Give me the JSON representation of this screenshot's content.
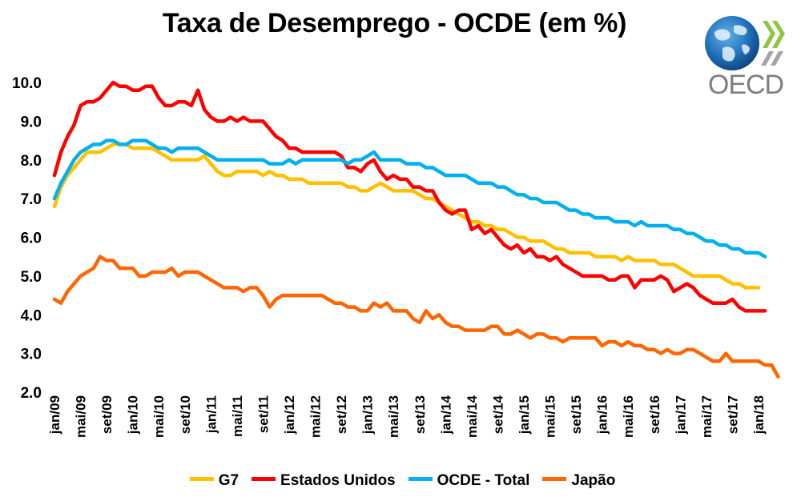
{
  "chart_data": {
    "type": "line",
    "title": "Taxa de Desemprego - OCDE (em %)",
    "xlabel": "",
    "ylabel": "",
    "ylim": [
      2.0,
      10.0
    ],
    "yticks": [
      "2.0",
      "3.0",
      "4.0",
      "5.0",
      "6.0",
      "7.0",
      "8.0",
      "9.0",
      "10.0"
    ],
    "xticks": [
      "jan/09",
      "mai/09",
      "set/09",
      "jan/10",
      "mai/10",
      "set/10",
      "jan/11",
      "mai/11",
      "set/11",
      "jan/12",
      "mai/12",
      "set/12",
      "jan/13",
      "mai/13",
      "set/13",
      "jan/14",
      "mai/14",
      "set/14",
      "jan/15",
      "mai/15",
      "set/15",
      "jan/16",
      "mai/16",
      "set/16",
      "jan/17",
      "mai/17",
      "set/17",
      "jan/18"
    ],
    "grid": false,
    "legend_position": "bottom",
    "series": [
      {
        "name": "G7",
        "color": "#FFC000",
        "values": [
          6.8,
          7.3,
          7.6,
          7.8,
          8.0,
          8.2,
          8.2,
          8.2,
          8.3,
          8.4,
          8.4,
          8.4,
          8.3,
          8.3,
          8.3,
          8.3,
          8.2,
          8.1,
          8.0,
          8.0,
          8.0,
          8.0,
          8.0,
          8.1,
          7.9,
          7.7,
          7.6,
          7.6,
          7.7,
          7.7,
          7.7,
          7.7,
          7.6,
          7.7,
          7.6,
          7.6,
          7.5,
          7.5,
          7.5,
          7.4,
          7.4,
          7.4,
          7.4,
          7.4,
          7.4,
          7.3,
          7.3,
          7.2,
          7.2,
          7.3,
          7.4,
          7.3,
          7.2,
          7.2,
          7.2,
          7.2,
          7.1,
          7.0,
          7.0,
          6.9,
          6.8,
          6.7,
          6.6,
          6.5,
          6.4,
          6.4,
          6.3,
          6.3,
          6.2,
          6.2,
          6.1,
          6.0,
          6.0,
          5.9,
          5.9,
          5.9,
          5.8,
          5.7,
          5.7,
          5.6,
          5.6,
          5.6,
          5.6,
          5.5,
          5.5,
          5.5,
          5.5,
          5.4,
          5.5,
          5.4,
          5.4,
          5.4,
          5.4,
          5.3,
          5.3,
          5.3,
          5.2,
          5.1,
          5.0,
          5.0,
          5.0,
          5.0,
          5.0,
          4.9,
          4.8,
          4.8,
          4.7,
          4.7,
          4.7
        ]
      },
      {
        "name": "Estados Unidos",
        "color": "#FF0000",
        "values": [
          7.6,
          8.2,
          8.6,
          8.9,
          9.4,
          9.5,
          9.5,
          9.6,
          9.8,
          10.0,
          9.9,
          9.9,
          9.8,
          9.8,
          9.9,
          9.9,
          9.6,
          9.4,
          9.4,
          9.5,
          9.5,
          9.4,
          9.8,
          9.3,
          9.1,
          9.0,
          9.0,
          9.1,
          9.0,
          9.1,
          9.0,
          9.0,
          9.0,
          8.8,
          8.6,
          8.5,
          8.3,
          8.3,
          8.2,
          8.2,
          8.2,
          8.2,
          8.2,
          8.2,
          8.1,
          7.8,
          7.8,
          7.7,
          7.9,
          8.0,
          7.7,
          7.5,
          7.6,
          7.5,
          7.5,
          7.3,
          7.3,
          7.2,
          7.2,
          6.9,
          6.7,
          6.6,
          6.7,
          6.7,
          6.2,
          6.3,
          6.1,
          6.2,
          6.0,
          5.8,
          5.7,
          5.8,
          5.6,
          5.7,
          5.5,
          5.5,
          5.4,
          5.5,
          5.3,
          5.2,
          5.1,
          5.0,
          5.0,
          5.0,
          5.0,
          4.9,
          4.9,
          5.0,
          5.0,
          4.7,
          4.9,
          4.9,
          4.9,
          5.0,
          4.9,
          4.6,
          4.7,
          4.8,
          4.7,
          4.5,
          4.4,
          4.3,
          4.3,
          4.3,
          4.4,
          4.2,
          4.1,
          4.1,
          4.1,
          4.1
        ]
      },
      {
        "name": "OCDE - Total",
        "color": "#00B0F0",
        "values": [
          7.0,
          7.4,
          7.7,
          8.0,
          8.2,
          8.3,
          8.4,
          8.4,
          8.5,
          8.5,
          8.4,
          8.4,
          8.5,
          8.5,
          8.5,
          8.4,
          8.3,
          8.3,
          8.2,
          8.3,
          8.3,
          8.3,
          8.3,
          8.2,
          8.1,
          8.0,
          8.0,
          8.0,
          8.0,
          8.0,
          8.0,
          8.0,
          8.0,
          7.9,
          7.9,
          7.9,
          8.0,
          7.9,
          8.0,
          8.0,
          8.0,
          8.0,
          8.0,
          8.0,
          8.0,
          7.9,
          8.0,
          8.0,
          8.1,
          8.2,
          8.0,
          8.0,
          8.0,
          8.0,
          7.9,
          7.9,
          7.9,
          7.8,
          7.8,
          7.7,
          7.6,
          7.6,
          7.6,
          7.6,
          7.5,
          7.4,
          7.4,
          7.4,
          7.3,
          7.3,
          7.2,
          7.1,
          7.1,
          7.0,
          7.0,
          6.9,
          6.9,
          6.9,
          6.8,
          6.7,
          6.7,
          6.6,
          6.6,
          6.5,
          6.5,
          6.5,
          6.4,
          6.4,
          6.4,
          6.3,
          6.4,
          6.3,
          6.3,
          6.3,
          6.3,
          6.2,
          6.2,
          6.1,
          6.1,
          6.0,
          5.9,
          5.9,
          5.8,
          5.8,
          5.7,
          5.7,
          5.6,
          5.6,
          5.6,
          5.5
        ]
      },
      {
        "name": "Japão",
        "color": "#FF6600",
        "values": [
          4.4,
          4.3,
          4.6,
          4.8,
          5.0,
          5.1,
          5.2,
          5.5,
          5.4,
          5.4,
          5.2,
          5.2,
          5.2,
          5.0,
          5.0,
          5.1,
          5.1,
          5.1,
          5.2,
          5.0,
          5.1,
          5.1,
          5.1,
          5.0,
          4.9,
          4.8,
          4.7,
          4.7,
          4.7,
          4.6,
          4.7,
          4.7,
          4.5,
          4.2,
          4.4,
          4.5,
          4.5,
          4.5,
          4.5,
          4.5,
          4.5,
          4.5,
          4.4,
          4.3,
          4.3,
          4.2,
          4.2,
          4.1,
          4.1,
          4.3,
          4.2,
          4.3,
          4.1,
          4.1,
          4.1,
          3.9,
          3.8,
          4.1,
          3.9,
          4.0,
          3.8,
          3.7,
          3.7,
          3.6,
          3.6,
          3.6,
          3.6,
          3.7,
          3.7,
          3.5,
          3.5,
          3.6,
          3.5,
          3.4,
          3.5,
          3.5,
          3.4,
          3.4,
          3.3,
          3.4,
          3.4,
          3.4,
          3.4,
          3.4,
          3.2,
          3.3,
          3.3,
          3.2,
          3.3,
          3.2,
          3.2,
          3.1,
          3.1,
          3.0,
          3.1,
          3.0,
          3.0,
          3.1,
          3.1,
          3.0,
          2.9,
          2.8,
          2.8,
          3.0,
          2.8,
          2.8,
          2.8,
          2.8,
          2.8,
          2.7,
          2.7,
          2.4
        ]
      }
    ]
  },
  "logo": {
    "text": "OECD"
  }
}
